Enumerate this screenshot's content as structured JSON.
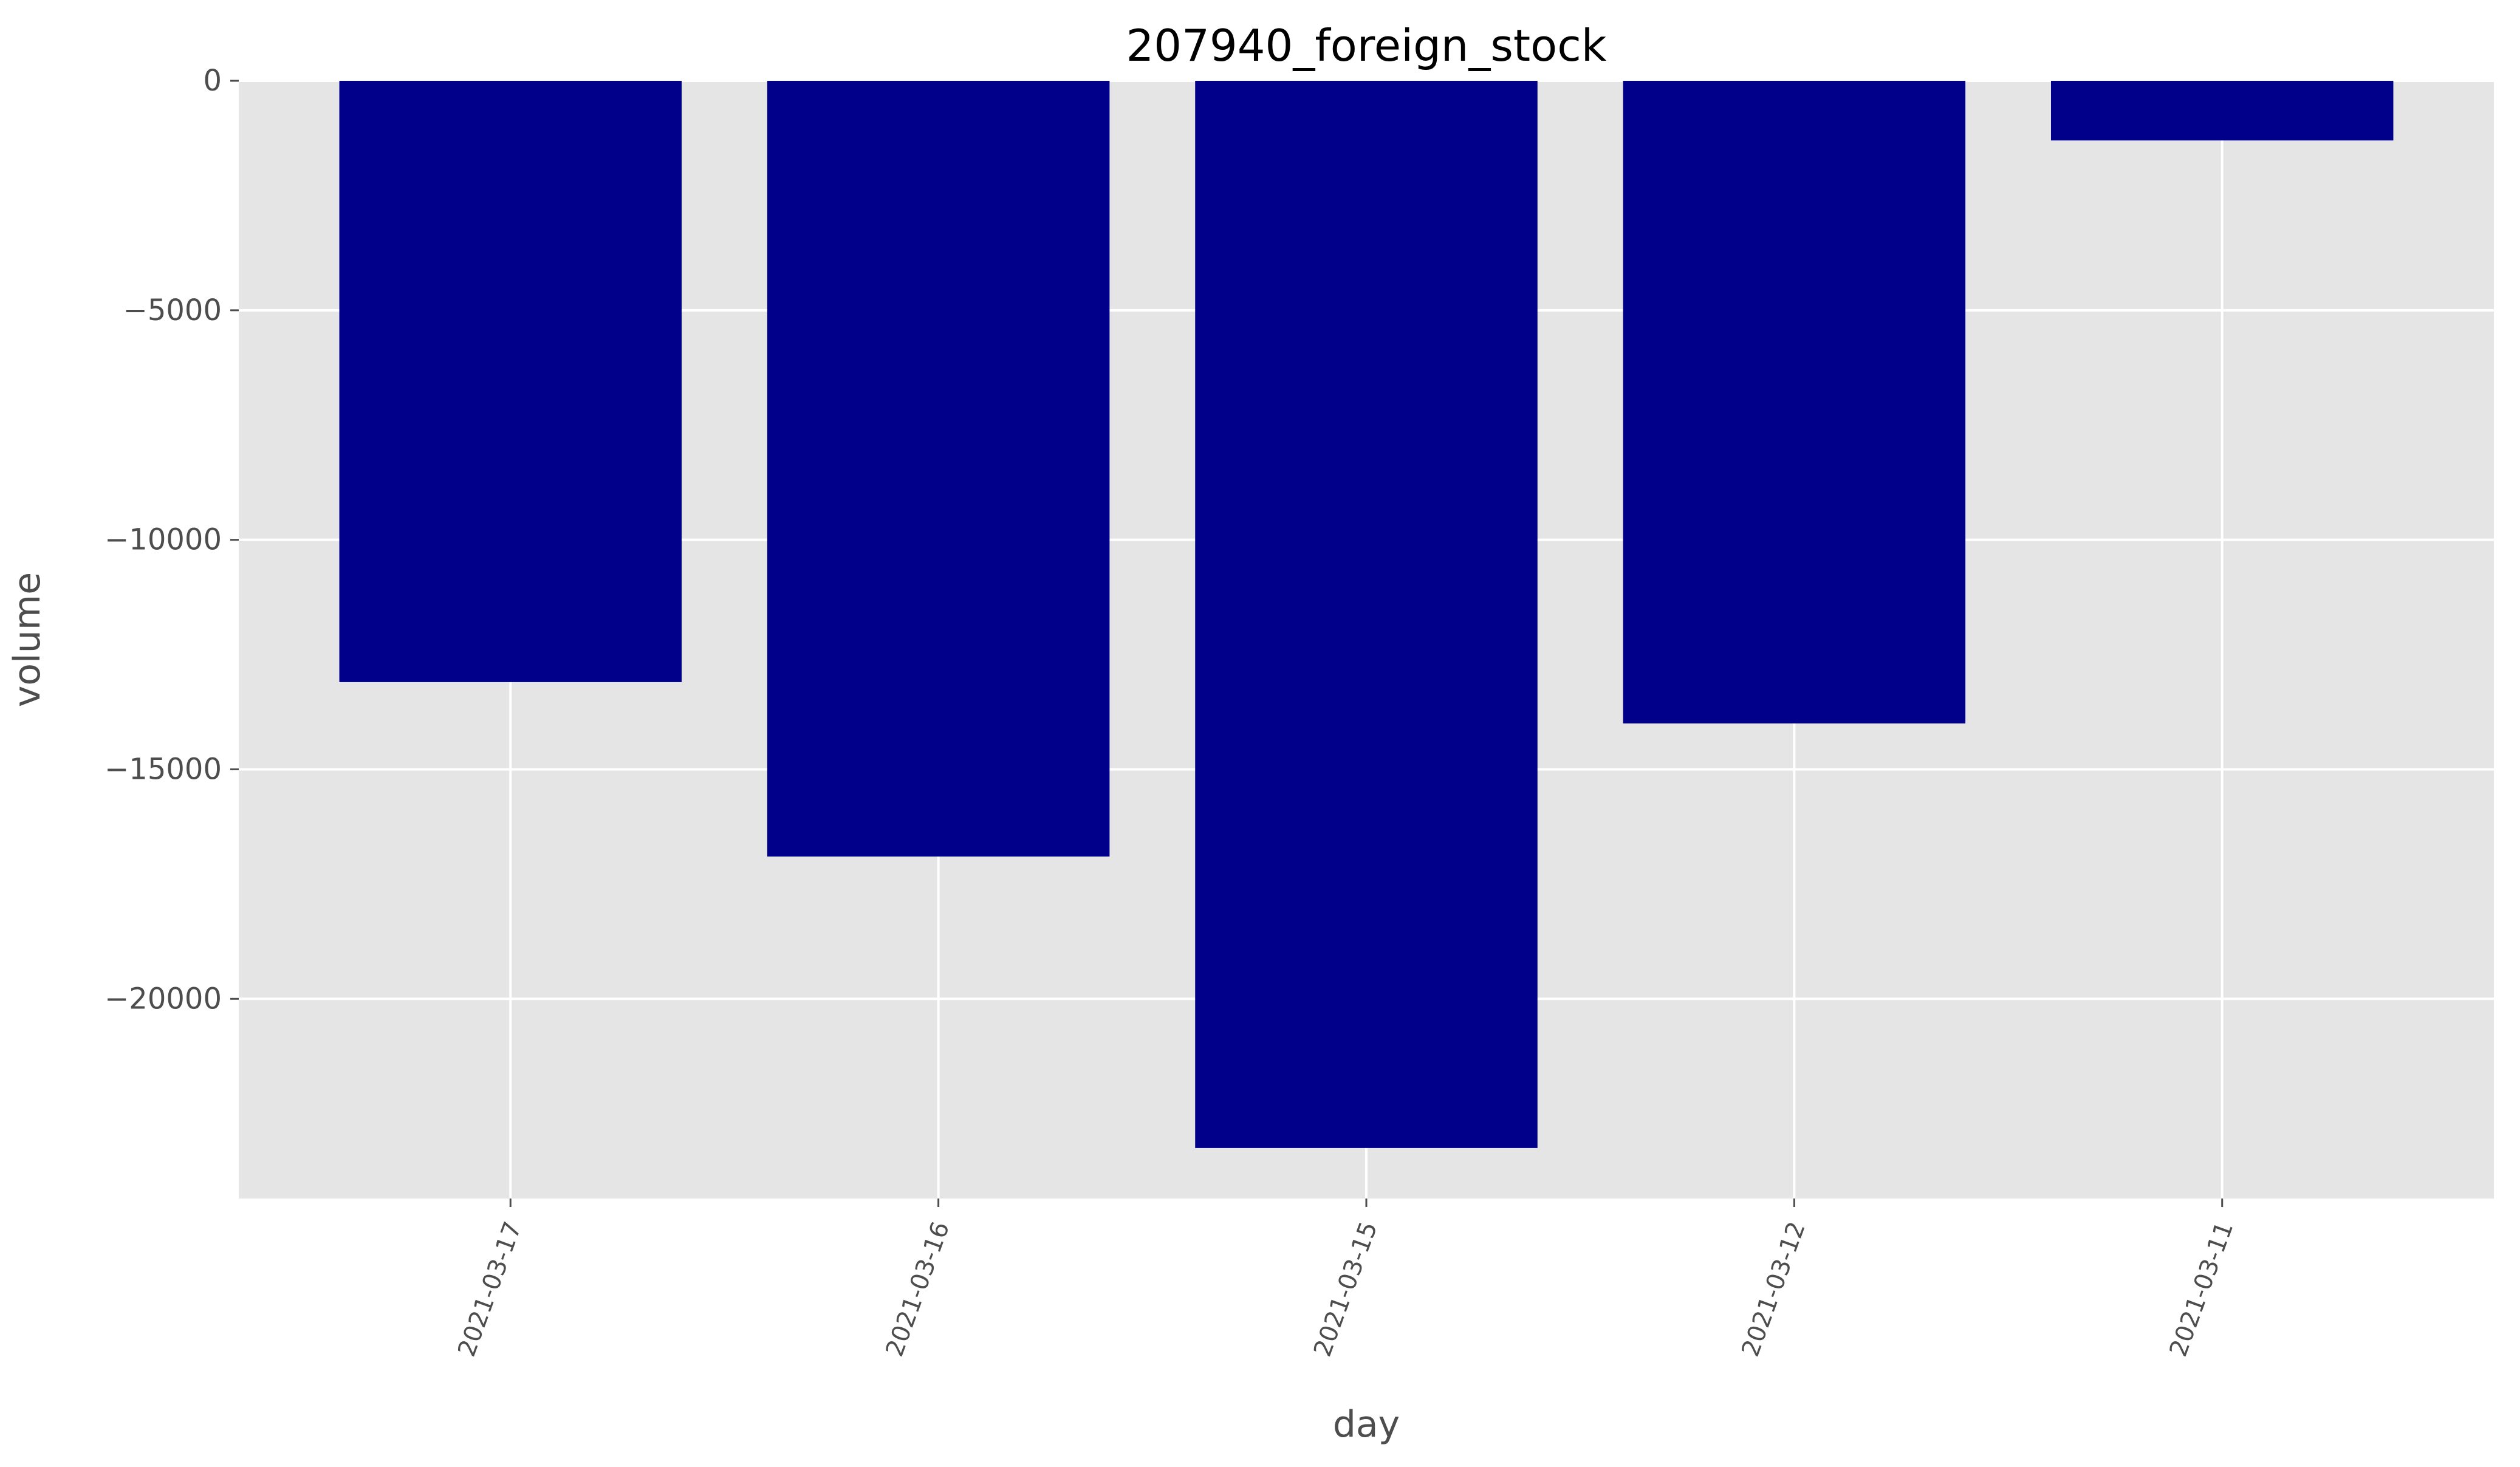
{
  "chart_data": {
    "type": "bar",
    "title": "207940_foreign_stock",
    "xlabel": "day",
    "ylabel": "volume",
    "categories": [
      "2021-03-17",
      "2021-03-16",
      "2021-03-15",
      "2021-03-12",
      "2021-03-11"
    ],
    "series": [
      {
        "values": [
          -13100,
          -16900,
          -23250,
          -14000,
          -1300
        ]
      }
    ],
    "ylim": [
      -24350,
      0
    ],
    "yticks": [
      0,
      -5000,
      -10000,
      -15000,
      -20000
    ],
    "ytick_labels": [
      "0",
      "−5000",
      "−10000",
      "−15000",
      "−20000"
    ],
    "xtick_rotation": "70 degrees",
    "grid": true,
    "legend": "none",
    "colors": {
      "bar": "#00008b",
      "plot_background": "#e5e5e5",
      "grid": "#ffffff",
      "tick_text": "#4d4d4d",
      "title_text": "#000000"
    }
  }
}
